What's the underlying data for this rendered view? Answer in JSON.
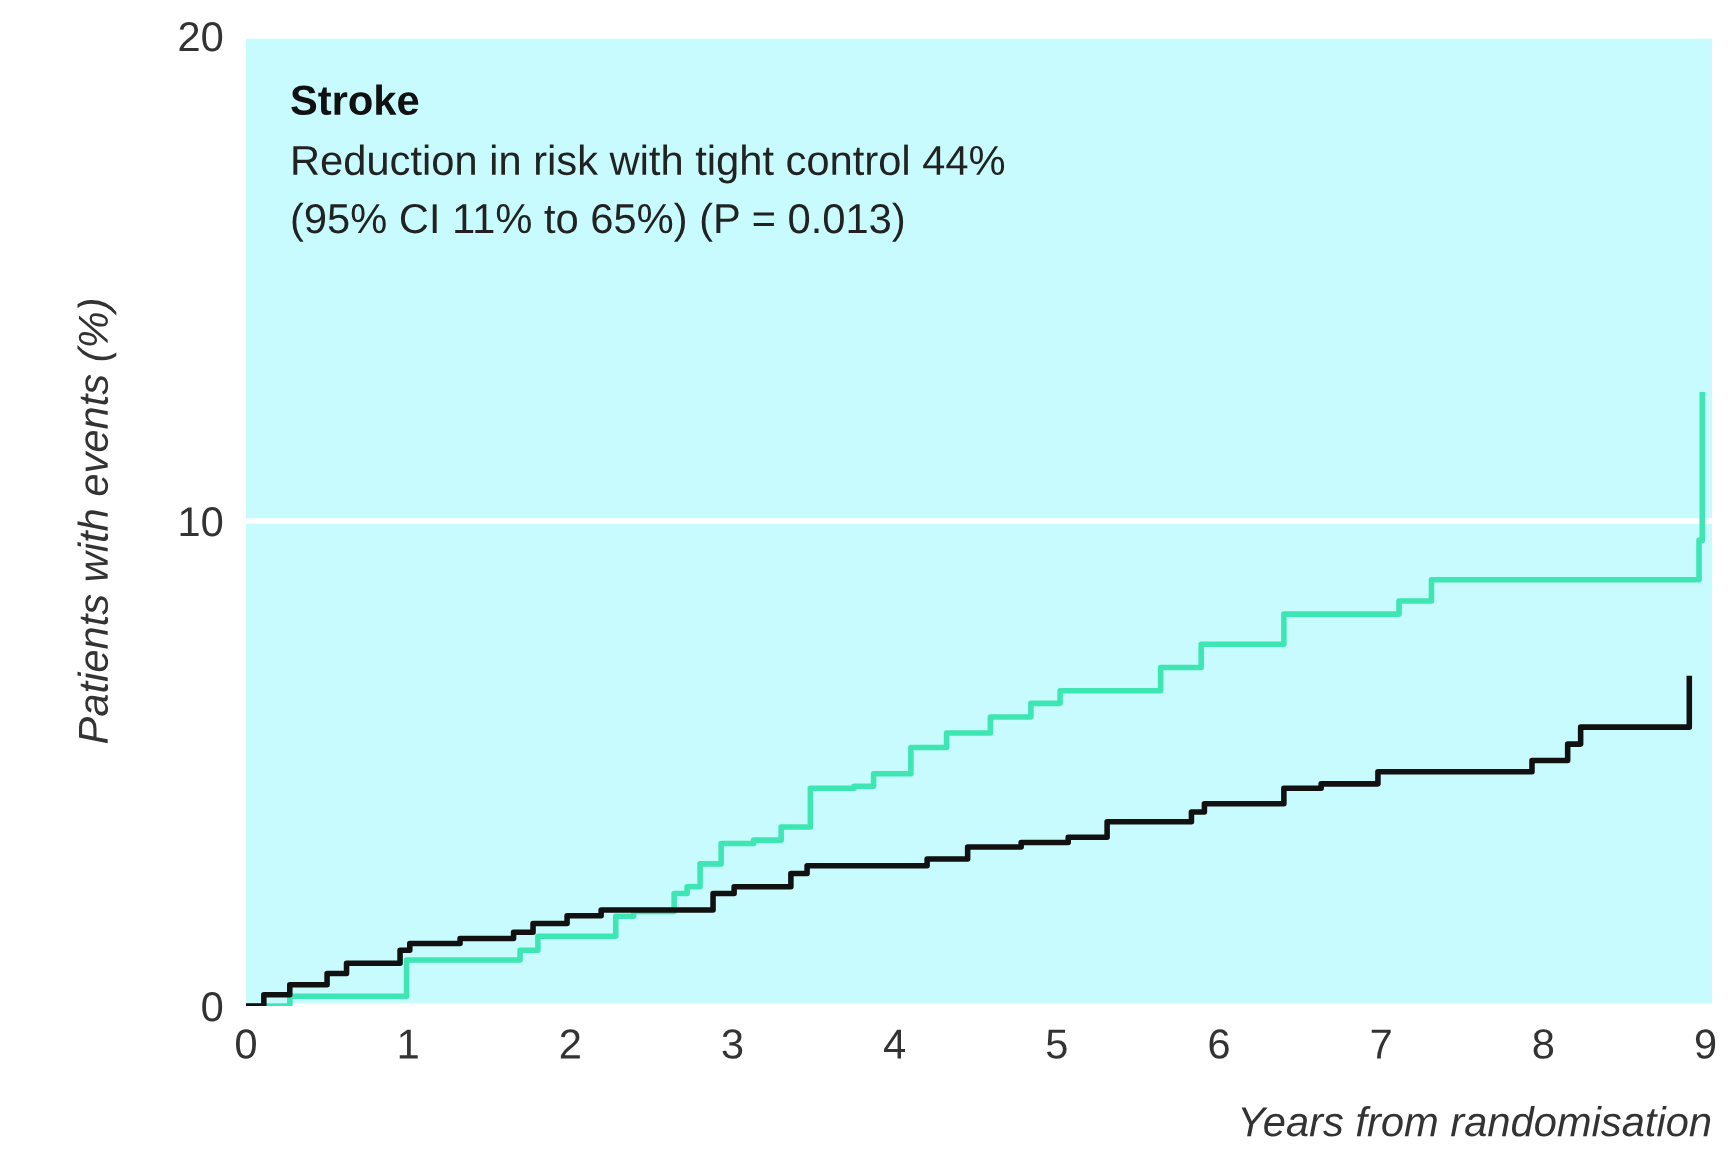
{
  "chart_data": {
    "type": "step",
    "title": "Stroke",
    "annotations": [
      "Reduction in risk with tight control 44%",
      "(95% CI 11% to 65%) (P = 0.013)"
    ],
    "xlabel": "Years from randomisation",
    "ylabel": "Patients with events (%)",
    "xlim": [
      0,
      9.04
    ],
    "ylim": [
      0,
      20
    ],
    "xticks": [
      0,
      1,
      2,
      3,
      4,
      5,
      6,
      7,
      8,
      9
    ],
    "yticks": [
      0,
      10,
      20
    ],
    "grid": "y",
    "legend": false,
    "line_style": "solid",
    "marker": "none",
    "series": [
      {
        "color": "#3ee6b4",
        "x": [
          0,
          0.27,
          0.99,
          1.69,
          1.8,
          2.28,
          2.39,
          2.64,
          2.72,
          2.8,
          2.93,
          3.13,
          3.3,
          3.48,
          3.75,
          3.87,
          4.1,
          4.32,
          4.59,
          4.84,
          5.02,
          5.64,
          5.89,
          6.4,
          7.11,
          7.31,
          8.96,
          8.98
        ],
        "values": [
          0,
          0.2,
          0.95,
          1.15,
          1.44,
          1.85,
          1.95,
          2.32,
          2.46,
          2.93,
          3.35,
          3.42,
          3.69,
          4.49,
          4.53,
          4.79,
          5.33,
          5.63,
          5.96,
          6.24,
          6.5,
          6.98,
          7.46,
          8.08,
          8.35,
          8.79,
          9.6,
          12.6
        ]
      },
      {
        "color": "#111111",
        "x": [
          0,
          0.11,
          0.27,
          0.5,
          0.62,
          0.95,
          1.01,
          1.32,
          1.65,
          1.77,
          1.98,
          2.19,
          2.88,
          3.01,
          3.36,
          3.46,
          4.2,
          4.45,
          4.78,
          5.07,
          5.31,
          5.83,
          5.91,
          6.4,
          6.63,
          6.98,
          7.93,
          8.15,
          8.23,
          8.9
        ],
        "values": [
          0,
          0.23,
          0.44,
          0.67,
          0.88,
          1.15,
          1.29,
          1.39,
          1.52,
          1.7,
          1.86,
          1.98,
          2.32,
          2.46,
          2.73,
          2.89,
          3.03,
          3.28,
          3.37,
          3.48,
          3.8,
          4.0,
          4.17,
          4.49,
          4.58,
          4.83,
          5.06,
          5.4,
          5.75,
          6.75
        ]
      }
    ]
  }
}
